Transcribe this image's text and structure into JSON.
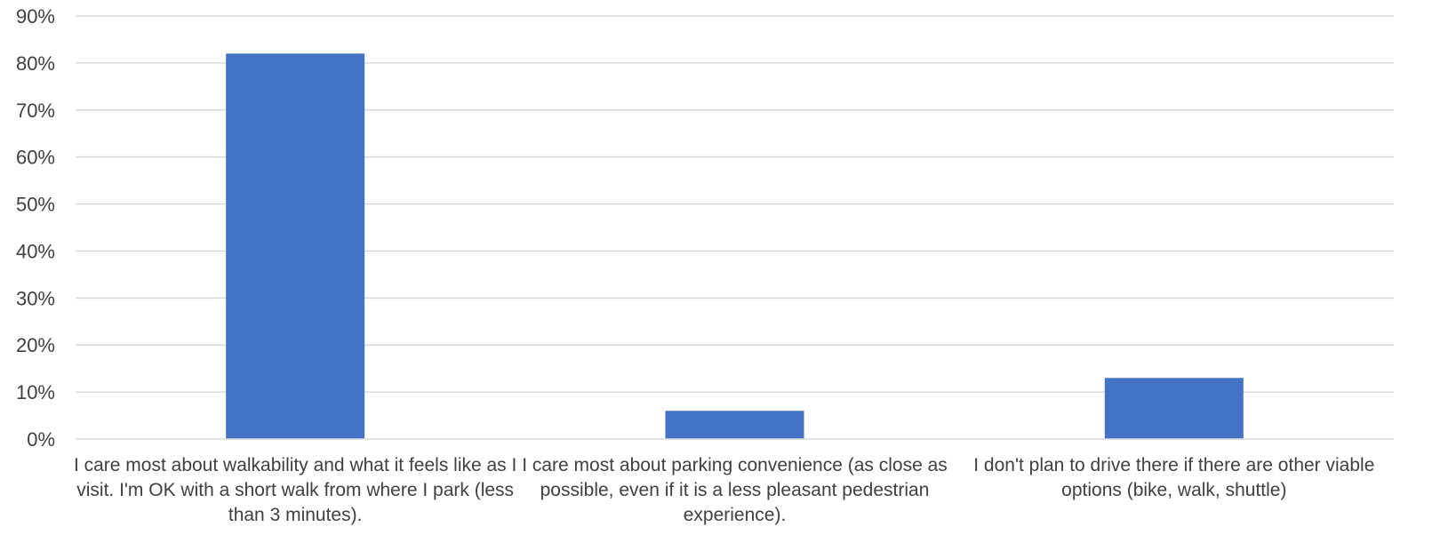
{
  "chart_data": {
    "type": "bar",
    "title": "",
    "xlabel": "",
    "ylabel": "",
    "categories": [
      "I care most about walkability and what it feels like as I visit.  I'm OK with a short walk from where I park (less than 3 minutes).",
      "I care most about parking convenience (as close as possible, even if it is a less pleasant pedestrian experience).",
      "I don't plan to drive there if there are other viable options (bike, walk, shuttle)"
    ],
    "series": [
      {
        "values": [
          82,
          6,
          13
        ]
      }
    ],
    "ylim": [
      0,
      90
    ],
    "yticks": [
      "0%",
      "10%",
      "20%",
      "30%",
      "40%",
      "50%",
      "60%",
      "70%",
      "80%",
      "90%"
    ],
    "bar_color": "#4472c4",
    "grid": true,
    "legend": "none"
  }
}
